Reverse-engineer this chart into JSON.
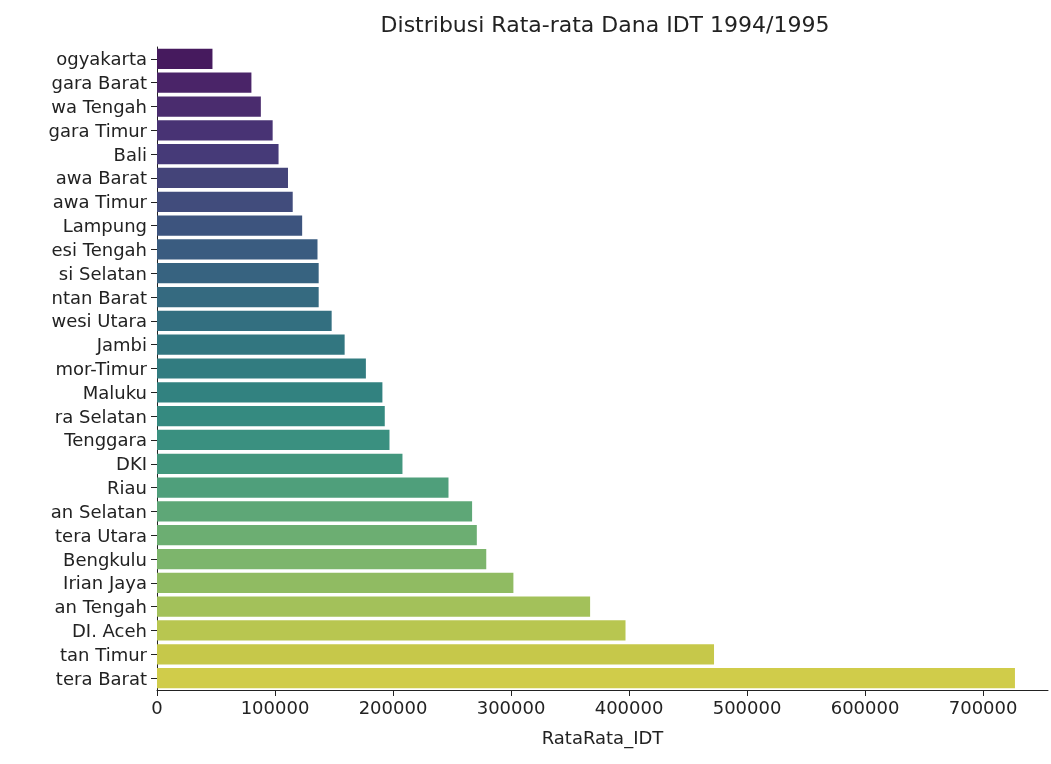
{
  "chart_data": {
    "type": "bar",
    "orientation": "horizontal",
    "title": "Distribusi Rata-rata Dana IDT 1994/1995",
    "xlabel": "RataRata_IDT",
    "categories": [
      "ogyakarta",
      "gara Barat",
      "wa Tengah",
      "gara Timur",
      "Bali",
      "awa Barat",
      "awa Timur",
      "Lampung",
      "esi Tengah",
      "si Selatan",
      "ntan Barat",
      "wesi Utara",
      "Jambi",
      "mor-Timur",
      "Maluku",
      "ra Selatan",
      "Tenggara",
      "DKI",
      "Riau",
      "an Selatan",
      "tera Utara",
      "Bengkulu",
      "Irian Jaya",
      "an Tengah",
      "DI. Aceh",
      "tan Timur",
      "tera Barat"
    ],
    "values": [
      47000,
      80000,
      88000,
      98000,
      103000,
      111000,
      115000,
      123000,
      136000,
      137000,
      137000,
      148000,
      159000,
      177000,
      191000,
      193000,
      197000,
      208000,
      247000,
      267000,
      271000,
      279000,
      302000,
      367000,
      397000,
      472000,
      727000
    ],
    "colors": [
      "#461a5e",
      "#4a2468",
      "#4a2c6e",
      "#483374",
      "#463a78",
      "#444479",
      "#414c7c",
      "#3d547e",
      "#3a5c80",
      "#376380",
      "#356a80",
      "#336f80",
      "#327680",
      "#327c80",
      "#328280",
      "#358a80",
      "#3a9080",
      "#43977e",
      "#4f9f7b",
      "#5ea777",
      "#6cae72",
      "#7db56c",
      "#90bb62",
      "#a3c15a",
      "#b8c650",
      "#c6c84a",
      "#d0cc4a"
    ],
    "xlim": [
      0,
      755000
    ],
    "xticks": [
      0,
      100000,
      200000,
      300000,
      400000,
      500000,
      600000,
      700000
    ],
    "grid": false
  }
}
